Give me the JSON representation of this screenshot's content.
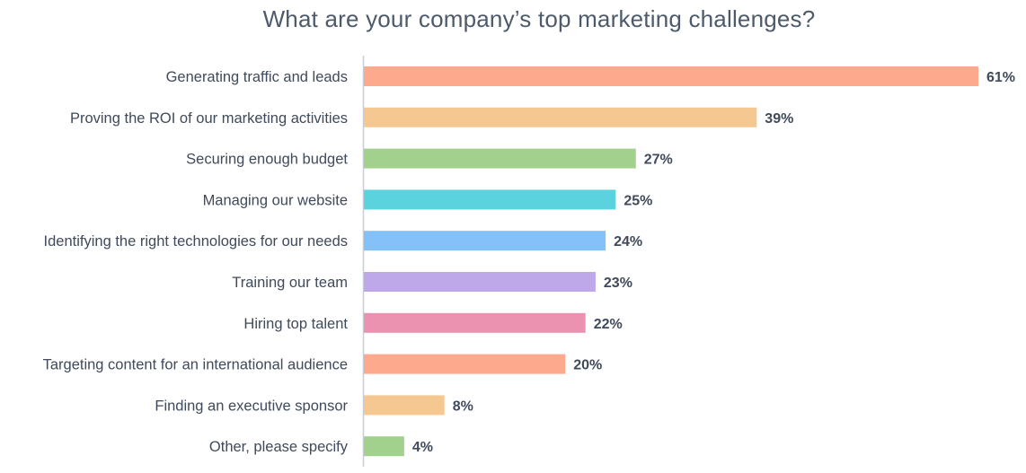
{
  "chart_data": {
    "type": "bar",
    "orientation": "horizontal",
    "title": "What are your company’s top marketing challenges?",
    "xlabel": "",
    "ylabel": "",
    "xlim": [
      0,
      61
    ],
    "grid": false,
    "categories": [
      "Generating traffic and leads",
      "Proving the ROI of our marketing activities",
      "Securing enough budget",
      "Managing our website",
      "Identifying the right technologies for our needs",
      "Training our team",
      "Hiring top talent",
      "Targeting content for an international audience",
      "Finding an executive sponsor",
      "Other, please specify"
    ],
    "values": [
      61,
      39,
      27,
      25,
      24,
      23,
      22,
      20,
      8,
      4
    ],
    "value_labels": [
      "61%",
      "39%",
      "27%",
      "25%",
      "24%",
      "23%",
      "22%",
      "20%",
      "8%",
      "4%"
    ],
    "colors": [
      "#fca98d",
      "#f5c892",
      "#a2d18e",
      "#5bd3de",
      "#83c1f8",
      "#bea8ea",
      "#ea92b0",
      "#fca98d",
      "#f5c892",
      "#a2d18e"
    ],
    "axis_color": "#c9ced6"
  }
}
